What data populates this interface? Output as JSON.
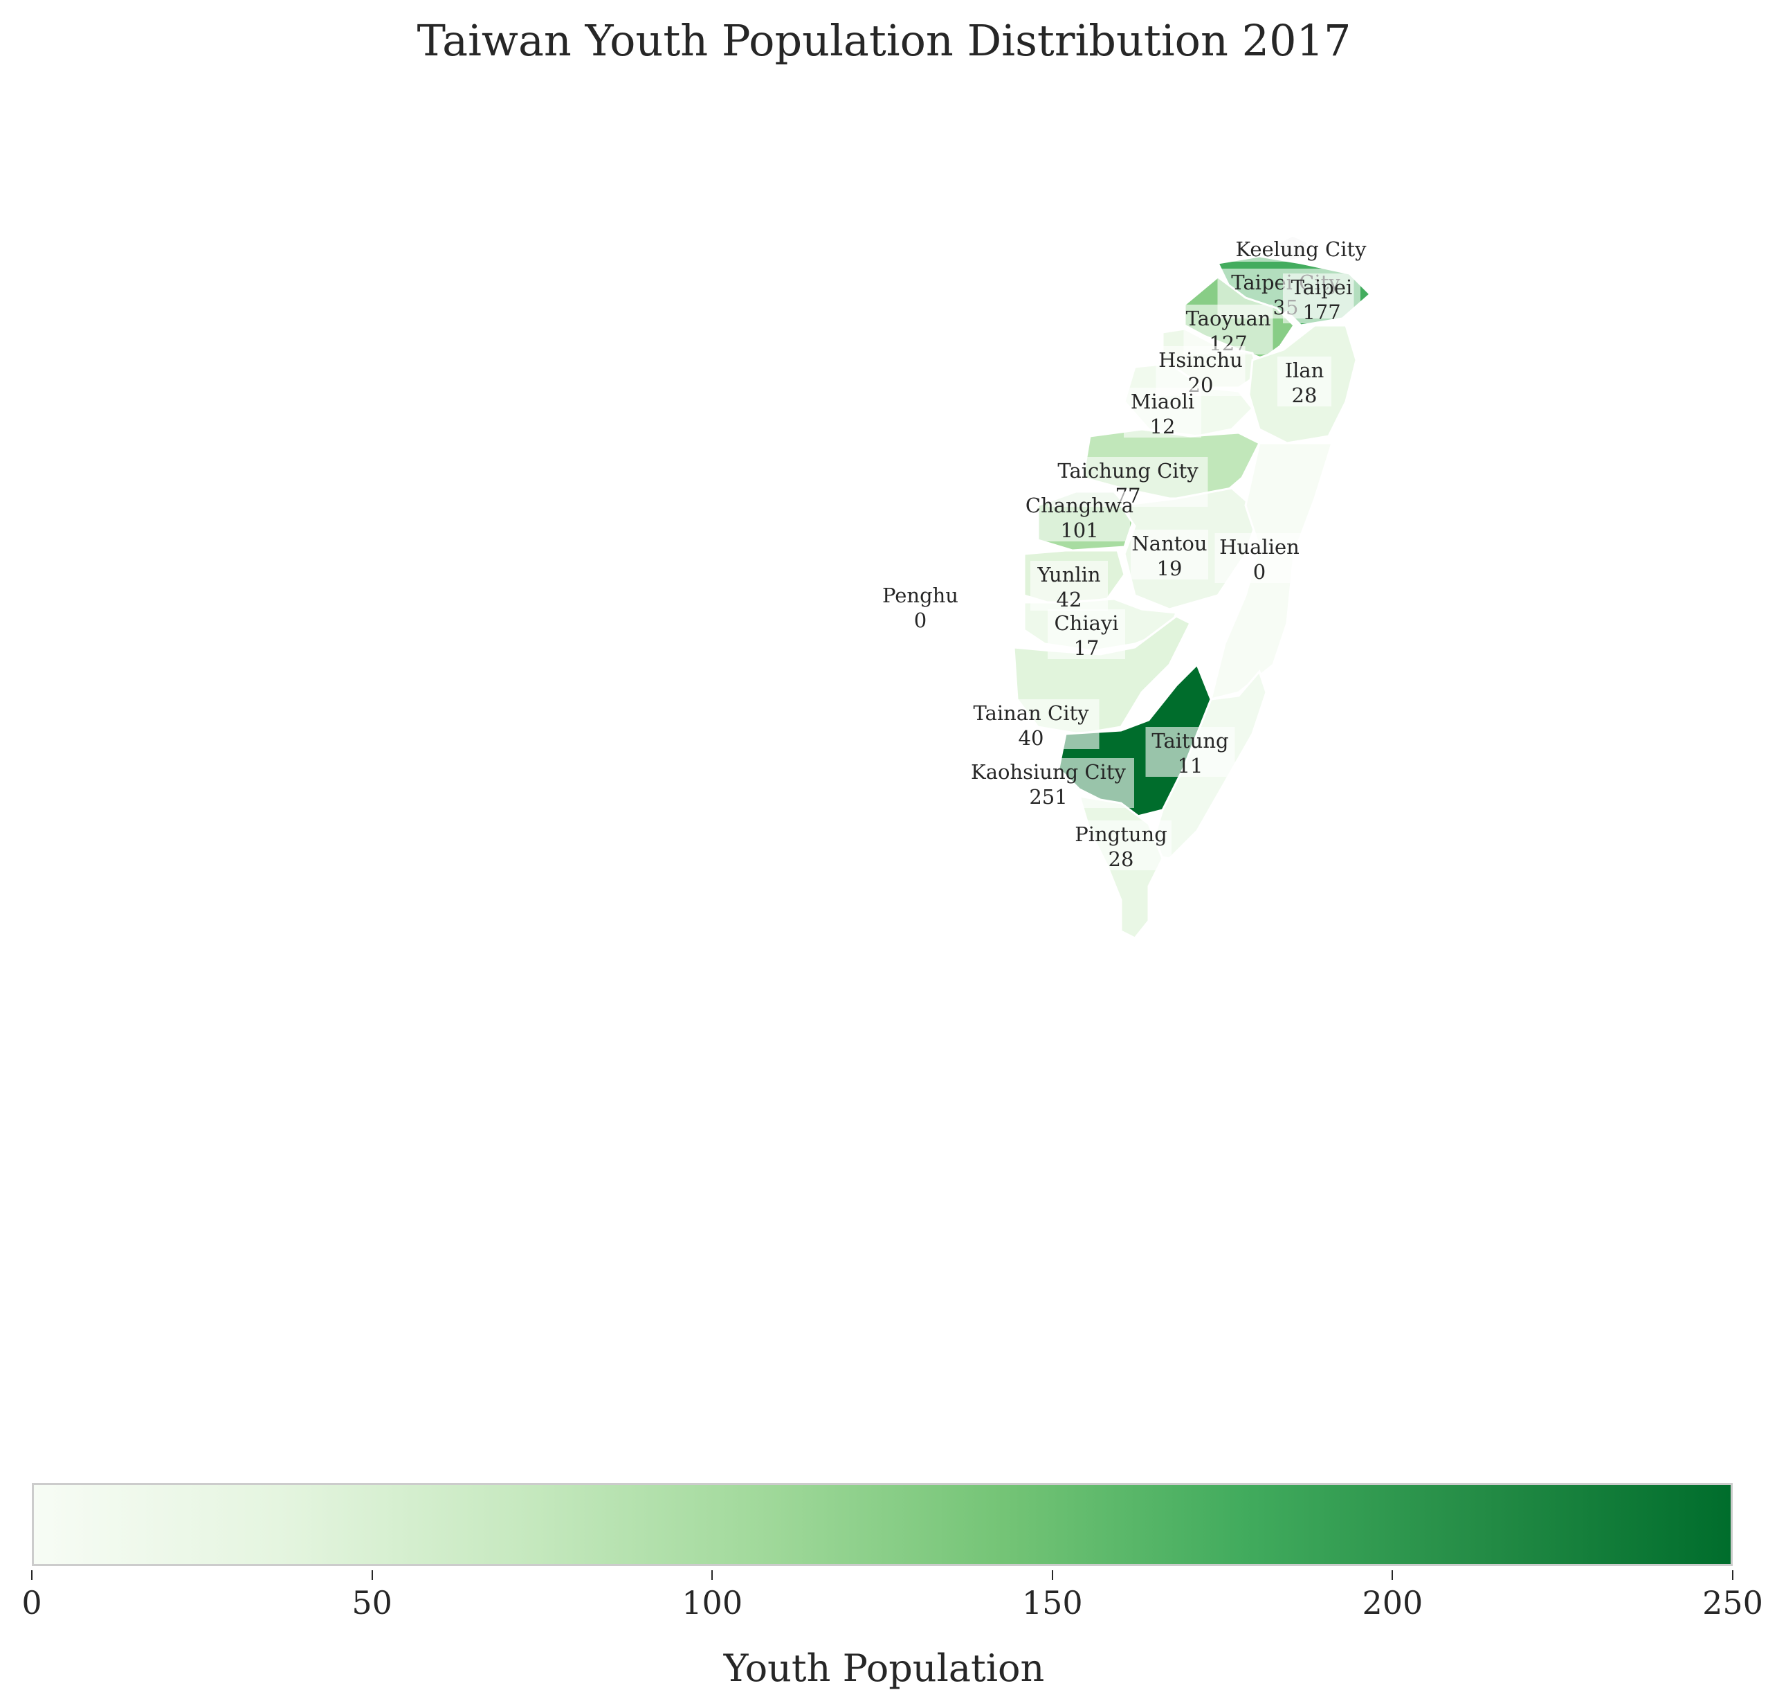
{
  "title": "Taiwan Youth Population Distribution 2017",
  "colorbar": {
    "label": "Youth Population",
    "min": 0,
    "max": 250,
    "ticks": [
      "0",
      "50",
      "100",
      "150",
      "200",
      "250"
    ],
    "colormap": [
      "#f7fcf5",
      "#e5f5e0",
      "#c7e9c0",
      "#a1d99b",
      "#74c476",
      "#41ab5d",
      "#238b45",
      "#006d2c"
    ]
  },
  "no_data_color": "#f2f2f2",
  "chart_data": {
    "type": "choropleth",
    "regions": [
      {
        "name": "Keelung City",
        "value": null,
        "value_label": ""
      },
      {
        "name": "Taipei City",
        "value": 35,
        "value_label": "35"
      },
      {
        "name": "Taipei",
        "value": 177,
        "value_label": "177"
      },
      {
        "name": "Taoyuan",
        "value": 127,
        "value_label": "127"
      },
      {
        "name": "Hsinchu",
        "value": 20,
        "value_label": "20"
      },
      {
        "name": "Ilan",
        "value": 28,
        "value_label": "28"
      },
      {
        "name": "Miaoli",
        "value": 12,
        "value_label": "12"
      },
      {
        "name": "Taichung City",
        "value": 77,
        "value_label": "77"
      },
      {
        "name": "Changhwa",
        "value": 101,
        "value_label": "101"
      },
      {
        "name": "Nantou",
        "value": 19,
        "value_label": "19"
      },
      {
        "name": "Hualien",
        "value": 0,
        "value_label": "0"
      },
      {
        "name": "Yunlin",
        "value": 42,
        "value_label": "42"
      },
      {
        "name": "Penghu",
        "value": 0,
        "value_label": "0"
      },
      {
        "name": "Chiayi",
        "value": 17,
        "value_label": "17"
      },
      {
        "name": "Tainan City",
        "value": 40,
        "value_label": "40"
      },
      {
        "name": "Taitung",
        "value": 11,
        "value_label": "11"
      },
      {
        "name": "Kaohsiung City",
        "value": 251,
        "value_label": "251"
      },
      {
        "name": "Pingtung",
        "value": 28,
        "value_label": "28"
      }
    ]
  }
}
